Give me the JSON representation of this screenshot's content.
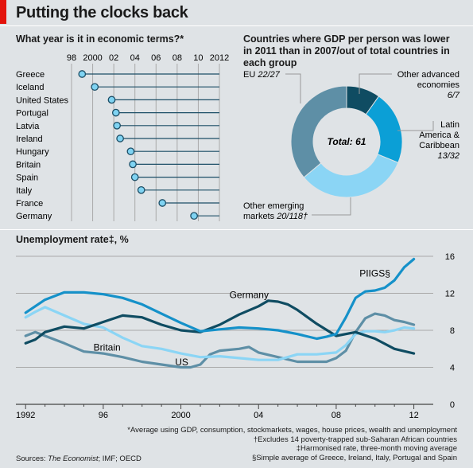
{
  "header": {
    "title": "Putting the clocks back"
  },
  "chart_data": [
    {
      "type": "dot",
      "title": "What year is it in economic terms?*",
      "xlim": [
        1997,
        2012
      ],
      "x_ticks": [
        1998,
        2000,
        2002,
        2004,
        2006,
        2008,
        2010,
        2012
      ],
      "x_tick_labels": [
        "98",
        "2000",
        "02",
        "04",
        "06",
        "08",
        "10",
        "2012"
      ],
      "categories": [
        "Greece",
        "Iceland",
        "United States",
        "Portugal",
        "Latvia",
        "Ireland",
        "Hungary",
        "Britain",
        "Spain",
        "Italy",
        "France",
        "Germany"
      ],
      "values": [
        1999.0,
        2000.2,
        2001.8,
        2002.2,
        2002.3,
        2002.6,
        2003.6,
        2003.8,
        2004.0,
        2004.6,
        2006.6,
        2009.6
      ],
      "colors": {
        "dot": "#7fd3f2",
        "stroke": "#1c4e66"
      }
    },
    {
      "type": "pie",
      "title": "Countries where GDP per person was lower in 2011 than in 2007/out of total countries in each group",
      "center_label": "Total: 61",
      "slices": [
        {
          "label": "Other advanced economies",
          "fraction": "6/7",
          "value": 6,
          "color": "#0f4c62"
        },
        {
          "label": "Latin America & Caribbean",
          "fraction": "13/32",
          "value": 13,
          "color": "#0b9fd6"
        },
        {
          "label": "Other emerging markets",
          "fraction": "20/118†",
          "value": 20,
          "color": "#8bd5f5"
        },
        {
          "label": "EU",
          "fraction": "22/27",
          "value": 22,
          "color": "#5e8fa6"
        }
      ]
    },
    {
      "type": "line",
      "title": "Unemployment rate‡, %",
      "xlim": [
        1991.5,
        2013
      ],
      "ylim": [
        0,
        16
      ],
      "y_ticks": [
        0,
        4,
        8,
        12,
        16
      ],
      "y_tick_labels": [
        "0",
        "4",
        "8",
        "12",
        "16"
      ],
      "x_tick_labels": [
        {
          "x": 1992,
          "label": "1992"
        },
        {
          "x": 1996,
          "label": "96"
        },
        {
          "x": 2000,
          "label": "2000"
        },
        {
          "x": 2004,
          "label": "04"
        },
        {
          "x": 2008,
          "label": "08"
        },
        {
          "x": 2012,
          "label": "12"
        }
      ],
      "series": [
        {
          "name": "US",
          "color": "#5e8fa6",
          "x": [
            1992,
            1992.5,
            1993,
            1994,
            1995,
            1996,
            1997,
            1998,
            1999,
            2000,
            2000.5,
            2001,
            2001.5,
            2002,
            2003,
            2003.5,
            2004,
            2005,
            2006,
            2007,
            2007.5,
            2008,
            2008.5,
            2009,
            2009.5,
            2010,
            2010.5,
            2011,
            2011.5,
            2012
          ],
          "y": [
            7.4,
            7.8,
            7.4,
            6.6,
            5.7,
            5.5,
            5.1,
            4.6,
            4.3,
            4.0,
            4.0,
            4.3,
            5.4,
            5.8,
            6.0,
            6.2,
            5.6,
            5.1,
            4.6,
            4.6,
            4.6,
            5.0,
            5.8,
            7.8,
            9.3,
            9.8,
            9.6,
            9.1,
            8.9,
            8.6
          ]
        },
        {
          "name": "Britain",
          "color": "#8bd5f5",
          "x": [
            1992,
            1992.5,
            1993,
            1994,
            1995,
            1996,
            1997,
            1998,
            1999,
            2000,
            2001,
            2002,
            2003,
            2004,
            2005,
            2006,
            2007,
            2008,
            2008.5,
            2009,
            2009.5,
            2010,
            2010.5,
            2011,
            2011.5,
            2012
          ],
          "y": [
            9.4,
            10.0,
            10.5,
            9.6,
            8.7,
            8.3,
            7.2,
            6.3,
            6.0,
            5.5,
            5.1,
            5.2,
            5.0,
            4.8,
            4.8,
            5.4,
            5.4,
            5.6,
            6.4,
            7.6,
            7.9,
            7.9,
            7.8,
            8.0,
            8.3,
            8.2
          ]
        },
        {
          "name": "Germany",
          "color": "#0f4c62",
          "x": [
            1992,
            1992.5,
            1993,
            1994,
            1995,
            1996,
            1997,
            1998,
            1999,
            2000,
            2001,
            2002,
            2003,
            2004,
            2004.5,
            2005,
            2005.5,
            2006,
            2007,
            2008,
            2009,
            2010,
            2011,
            2012
          ],
          "y": [
            6.6,
            7.0,
            7.8,
            8.4,
            8.2,
            8.9,
            9.6,
            9.4,
            8.6,
            8.0,
            7.8,
            8.6,
            9.7,
            10.6,
            11.2,
            11.1,
            10.8,
            10.2,
            8.7,
            7.4,
            7.8,
            7.1,
            6.0,
            5.5
          ]
        },
        {
          "name": "PIIGS§",
          "color": "#1591c9",
          "x": [
            1992,
            1993,
            1994,
            1995,
            1996,
            1997,
            1998,
            1999,
            2000,
            2001,
            2002,
            2003,
            2004,
            2005,
            2006,
            2007,
            2007.5,
            2008,
            2008.5,
            2009,
            2009.5,
            2010,
            2010.5,
            2011,
            2011.5,
            2012
          ],
          "y": [
            9.9,
            11.3,
            12.1,
            12.1,
            11.9,
            11.5,
            10.8,
            9.8,
            8.8,
            7.9,
            8.1,
            8.3,
            8.2,
            8.0,
            7.6,
            7.1,
            7.3,
            7.6,
            9.4,
            11.5,
            12.2,
            12.3,
            12.6,
            13.4,
            14.8,
            15.7
          ]
        }
      ]
    }
  ],
  "notes": [
    "*Average using GDP, consumption, stockmarkets, wages, house prices, wealth and unemployment",
    "†Excludes 14 poverty-trapped sub-Saharan African countries",
    "‡Harmonised rate, three-month moving average",
    "§Simple average of Greece, Ireland, Italy, Portugal and Spain"
  ],
  "sources": {
    "label": "Sources:",
    "source1": "The Economist",
    "rest": "; IMF; OECD"
  }
}
